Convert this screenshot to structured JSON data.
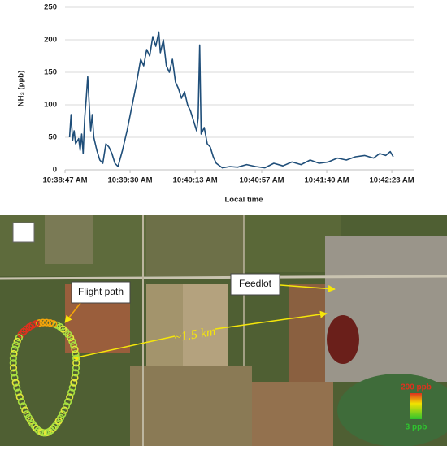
{
  "chart_data": {
    "type": "line",
    "y_label": "NH₃ (ppb)",
    "x_label": "Local time",
    "x": [
      "10:38:50 AM",
      "10:38:51 AM",
      "10:38:52 AM",
      "10:38:53 AM",
      "10:38:54 AM",
      "10:38:56 AM",
      "10:38:57 AM",
      "10:38:58 AM",
      "10:38:59 AM",
      "10:39:00 AM",
      "10:39:01 AM",
      "10:39:02 AM",
      "10:39:03 AM",
      "10:39:04 AM",
      "10:39:05 AM",
      "10:39:06 AM",
      "10:39:08 AM",
      "10:39:10 AM",
      "10:39:12 AM",
      "10:39:14 AM",
      "10:39:16 AM",
      "10:39:18 AM",
      "10:39:20 AM",
      "10:39:22 AM",
      "10:39:25 AM",
      "10:39:28 AM",
      "10:39:31 AM",
      "10:39:34 AM",
      "10:39:37 AM",
      "10:39:39 AM",
      "10:39:41 AM",
      "10:39:43 AM",
      "10:39:45 AM",
      "10:39:47 AM",
      "10:39:49 AM",
      "10:39:50 AM",
      "10:39:52 AM",
      "10:39:54 AM",
      "10:39:56 AM",
      "10:39:58 AM",
      "10:40:00 AM",
      "10:40:02 AM",
      "10:40:04 AM",
      "10:40:06 AM",
      "10:40:08 AM",
      "10:40:10 AM",
      "10:40:12 AM",
      "10:40:14 AM",
      "10:40:15 AM",
      "10:40:16 AM",
      "10:40:17 AM",
      "10:40:19 AM",
      "10:40:21 AM",
      "10:40:23 AM",
      "10:40:25 AM",
      "10:40:27 AM",
      "10:40:31 AM",
      "10:40:36 AM",
      "10:40:41 AM",
      "10:40:47 AM",
      "10:40:53 AM",
      "10:40:59 AM",
      "10:41:05 AM",
      "10:41:11 AM",
      "10:41:17 AM",
      "10:41:23 AM",
      "10:41:29 AM",
      "10:41:35 AM",
      "10:41:41 AM",
      "10:41:47 AM",
      "10:41:53 AM",
      "10:41:59 AM",
      "10:42:05 AM",
      "10:42:11 AM",
      "10:42:15 AM",
      "10:42:19 AM",
      "10:42:22 AM",
      "10:42:24 AM"
    ],
    "series": [
      {
        "color": "#1f4e79",
        "values": [
          50,
          85,
          45,
          60,
          40,
          48,
          30,
          55,
          25,
          80,
          110,
          143,
          100,
          60,
          85,
          50,
          30,
          15,
          10,
          40,
          35,
          25,
          10,
          5,
          30,
          60,
          95,
          130,
          170,
          160,
          185,
          175,
          205,
          190,
          212,
          180,
          200,
          160,
          150,
          170,
          135,
          125,
          110,
          120,
          100,
          90,
          75,
          60,
          80,
          192,
          55,
          65,
          40,
          35,
          20,
          10,
          3,
          5,
          4,
          8,
          5,
          3,
          10,
          6,
          12,
          8,
          15,
          10,
          12,
          18,
          15,
          20,
          22,
          18,
          25,
          22,
          28,
          20
        ]
      }
    ],
    "xlim": [
      "10:38:47 AM",
      "10:42:38 AM"
    ],
    "xticks": [
      "10:38:47 AM",
      "10:39:30 AM",
      "10:40:13 AM",
      "10:40:57 AM",
      "10:41:40 AM",
      "10:42:23 AM"
    ],
    "ylim": [
      0,
      250
    ],
    "yticks": [
      0,
      50,
      100,
      150,
      200,
      250
    ],
    "grid": true
  },
  "map": {
    "flight_path_label": "Flight path",
    "feedlot_label": "Feedlot",
    "distance_label": "~1.5 km",
    "legend_max": "200 ppb",
    "legend_min": "3 ppb"
  }
}
